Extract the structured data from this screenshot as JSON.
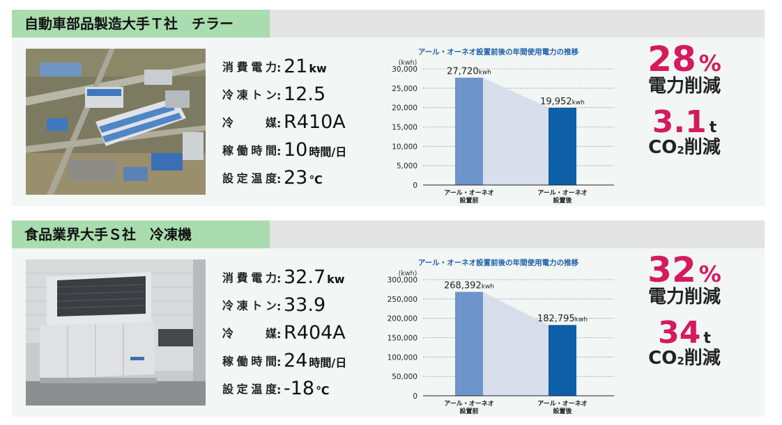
{
  "cases": [
    {
      "title": "自動車部品製造大手Ｔ社　チラー",
      "photo": "factory-aerial-icon",
      "specs": [
        {
          "label": "消費電力",
          "value": "21",
          "unit": "kw"
        },
        {
          "label": "冷凍トン",
          "value": "12.5",
          "unit": ""
        },
        {
          "label": "冷媒",
          "value": "R410A",
          "unit": ""
        },
        {
          "label": "稼働時間",
          "value": "10",
          "unit": "時間/日"
        },
        {
          "label": "設定温度",
          "value": "23",
          "unit": "℃"
        }
      ],
      "results": {
        "power_reduction": "28",
        "power_reduction_unit": "%",
        "power_reduction_label": "電力削減",
        "co2_reduction": "3.1",
        "co2_reduction_unit": "t",
        "co2_label_prefix": "CO",
        "co2_label_sub": "2",
        "co2_label_suffix": "削減"
      },
      "chart_data": {
        "type": "bar",
        "title": "アール・オーネオ設置前後の年間使用電力の推移",
        "ylabel": "(kwh)",
        "categories": [
          [
            "アール・オーネオ",
            "設置前"
          ],
          [
            "アール・オーネオ",
            "設置後"
          ]
        ],
        "values": [
          27720,
          19952
        ],
        "value_labels": [
          "27,720",
          "19,952"
        ],
        "value_unit": "kwh",
        "ylim": [
          0,
          30000
        ],
        "yticks": [
          0,
          5000,
          10000,
          15000,
          20000,
          25000,
          30000
        ],
        "ytick_labels": [
          "0",
          "5,000",
          "10,000",
          "15,000",
          "20,000",
          "25,000",
          "30,000"
        ],
        "grid": "dotted",
        "colors": [
          "#6d95cc",
          "#0d5fa8"
        ],
        "band_color": "#d6dcec"
      }
    },
    {
      "title": "食品業界大手Ｓ社　冷凍機",
      "photo": "refrigeration-unit-icon",
      "specs": [
        {
          "label": "消費電力",
          "value": "32.7",
          "unit": "kw"
        },
        {
          "label": "冷凍トン",
          "value": "33.9",
          "unit": ""
        },
        {
          "label": "冷媒",
          "value": "R404A",
          "unit": ""
        },
        {
          "label": "稼働時間",
          "value": "24",
          "unit": "時間/日"
        },
        {
          "label": "設定温度",
          "value": "-18",
          "unit": "℃"
        }
      ],
      "results": {
        "power_reduction": "32",
        "power_reduction_unit": "%",
        "power_reduction_label": "電力削減",
        "co2_reduction": "34",
        "co2_reduction_unit": "t",
        "co2_label_prefix": "CO",
        "co2_label_sub": "2",
        "co2_label_suffix": "削減"
      },
      "chart_data": {
        "type": "bar",
        "title": "アール・オーネオ設置前後の年間使用電力の推移",
        "ylabel": "(kwh)",
        "categories": [
          [
            "アール・オーネオ",
            "設置前"
          ],
          [
            "アール・オーネオ",
            "設置後"
          ]
        ],
        "values": [
          268392,
          182795
        ],
        "value_labels": [
          "268,392",
          "182,795"
        ],
        "value_unit": "kwh",
        "ylim": [
          0,
          300000
        ],
        "yticks": [
          0,
          50000,
          100000,
          150000,
          200000,
          250000,
          300000
        ],
        "ytick_labels": [
          "0",
          "50,000",
          "100,000",
          "150,000",
          "200,000",
          "250,000",
          "300,000"
        ],
        "grid": "dotted",
        "colors": [
          "#6d95cc",
          "#0d5fa8"
        ],
        "band_color": "#d6dcec"
      }
    }
  ]
}
